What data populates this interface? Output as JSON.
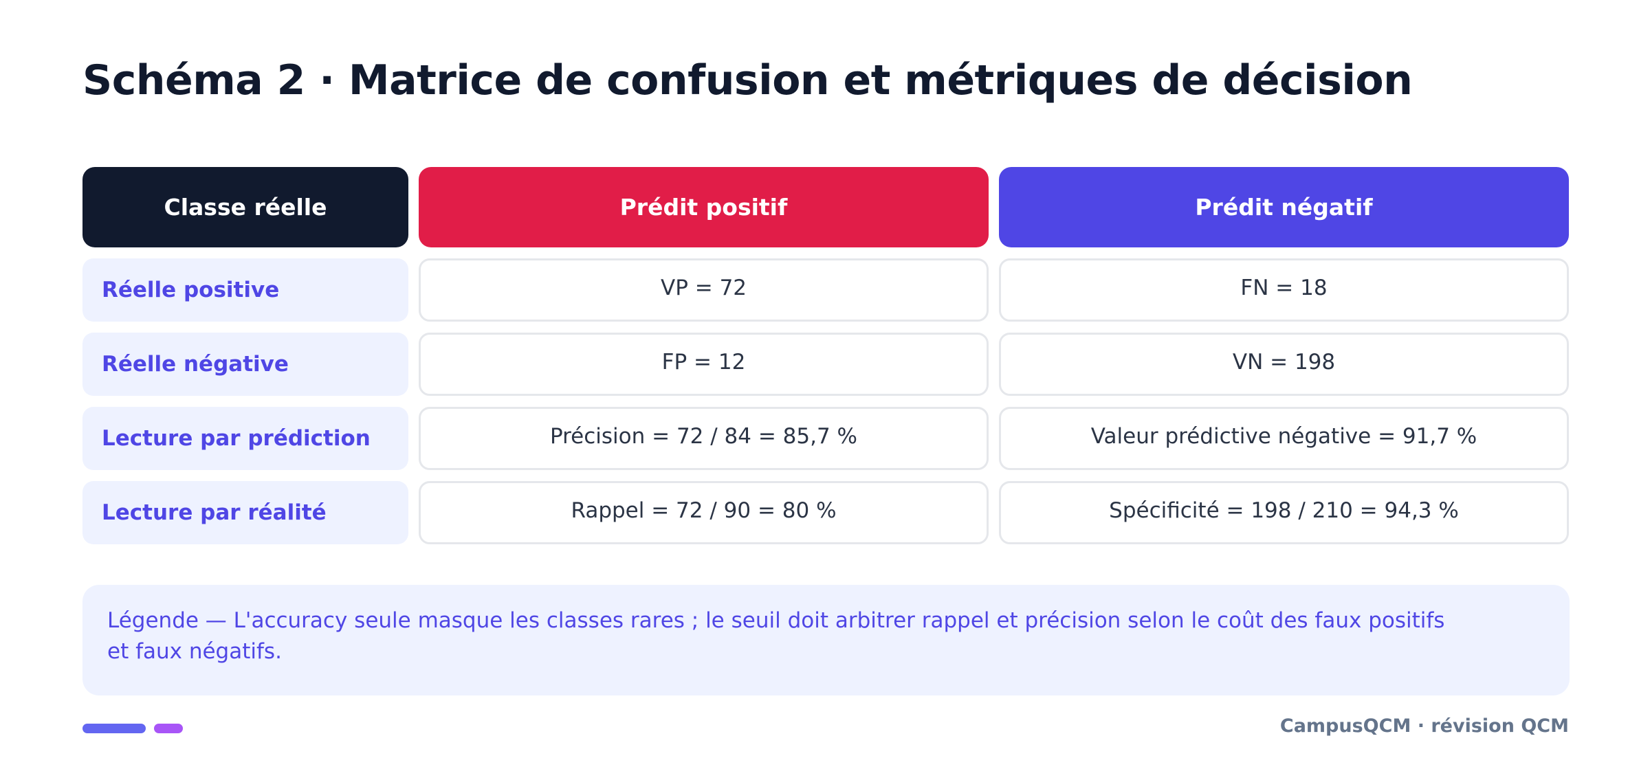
{
  "title": "Schéma 2 · Matrice de confusion et métriques de décision",
  "colors": {
    "header_dark": "#111a2e",
    "header_positive": "#e11d48",
    "header_negative": "#4f46e5",
    "row_label_bg": "#eef2ff",
    "row_label_text": "#4f46e5",
    "accent_bar_1": "#6366f1",
    "accent_bar_2": "#a855f7"
  },
  "matrix": {
    "headers": [
      "Classe réelle",
      "Prédit positif",
      "Prédit négatif"
    ],
    "rows": [
      {
        "label": "Réelle positive",
        "cells": [
          "VP = 72",
          "FN = 18"
        ]
      },
      {
        "label": "Réelle négative",
        "cells": [
          "FP = 12",
          "VN = 198"
        ]
      },
      {
        "label": "Lecture par prédiction",
        "cells": [
          "Précision = 72 / 84 = 85,7 %",
          "Valeur prédictive négative = 91,7 %"
        ]
      },
      {
        "label": "Lecture par réalité",
        "cells": [
          "Rappel = 72 / 90 = 80 %",
          "Spécificité = 198 / 210 = 94,3 %"
        ]
      }
    ]
  },
  "legend": {
    "text": "Légende — L'accuracy seule masque les classes rares ; le seuil doit arbitrer rappel et précision selon le coût des faux positifs et faux négatifs."
  },
  "footer": {
    "brand": "CampusQCM · révision QCM"
  }
}
